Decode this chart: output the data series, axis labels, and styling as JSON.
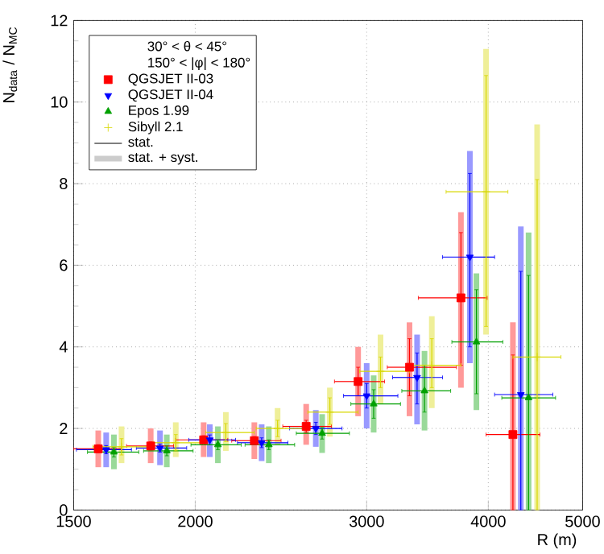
{
  "chart_data": {
    "type": "scatter",
    "xlabel": "R (m)",
    "ylabel": "N$_{data}$ / N$_{MC}$",
    "legend_title": "30° < θ < 45°",
    "annotations": [
      "150° < |φ| < 180°",
      "stat.",
      "stat. + syst."
    ],
    "log": "x",
    "xlim": [
      1500,
      5000
    ],
    "xticks": [
      1500,
      2000,
      3000,
      4000,
      5000
    ],
    "ylim": [
      0,
      12
    ],
    "yticks": [
      0,
      2,
      4,
      6,
      8,
      10,
      12
    ],
    "grid": true,
    "legend": "top left",
    "series": [
      {
        "type": "bar",
        "color": "#ff9999",
        "x": [
          1590,
          1800,
          2040,
          2300,
          2600,
          2940,
          3320,
          3750,
          4240
        ],
        "base": [
          1.05,
          1.15,
          1.3,
          1.25,
          1.6,
          2.3,
          2.3,
          3.0,
          0
        ],
        "values": [
          0.9,
          0.85,
          0.85,
          0.9,
          1.0,
          1.7,
          2.3,
          4.3,
          4.6
        ]
      },
      {
        "type": "bar",
        "color": "#9999ff",
        "x": [
          1620,
          1840,
          2070,
          2340,
          2660,
          3000,
          3380,
          3830,
          4320
        ],
        "base": [
          1.05,
          1.1,
          1.3,
          1.2,
          1.55,
          2.0,
          2.1,
          3.6,
          0
        ],
        "values": [
          0.85,
          0.85,
          0.8,
          0.9,
          0.9,
          1.6,
          2.2,
          5.2,
          6.95
        ]
      },
      {
        "type": "bar",
        "color": "#99d999",
        "x": [
          1650,
          1870,
          2110,
          2380,
          2700,
          3050,
          3440,
          3890,
          4400
        ],
        "base": [
          1.0,
          1.05,
          1.15,
          1.15,
          1.4,
          1.9,
          1.95,
          2.45,
          0
        ],
        "values": [
          0.85,
          0.8,
          0.9,
          0.9,
          0.95,
          1.4,
          1.95,
          3.35,
          6.8
        ]
      },
      {
        "type": "bar",
        "color": "#efef99",
        "x": [
          1680,
          1910,
          2150,
          2430,
          2750,
          3100,
          3500,
          3980,
          4490
        ],
        "base": [
          1.15,
          1.3,
          1.45,
          1.6,
          1.8,
          2.6,
          2.5,
          4.3,
          0
        ],
        "values": [
          0.9,
          0.85,
          0.95,
          0.9,
          1.2,
          1.7,
          2.25,
          7.0,
          9.45
        ]
      },
      {
        "name": "QGSJET II-03",
        "color": "#ff0000",
        "marker": "square",
        "x": [
          1590,
          1800,
          2040,
          2300,
          2600,
          2940,
          3320,
          3750,
          4240
        ],
        "values": [
          1.5,
          1.57,
          1.72,
          1.7,
          2.05,
          3.15,
          3.5,
          5.2,
          1.85
        ],
        "errors": [
          [
            1.4,
            1.6
          ],
          [
            1.47,
            1.67
          ],
          [
            1.62,
            1.82
          ],
          [
            1.6,
            1.8
          ],
          [
            1.9,
            2.2
          ],
          [
            2.8,
            3.5
          ],
          [
            2.8,
            4.2
          ],
          [
            3.55,
            6.8
          ],
          [
            0,
            3.8
          ]
        ],
        "xerrors": [
          [
            1500,
            1680
          ],
          [
            1700,
            1900
          ],
          [
            1910,
            2160
          ],
          [
            2180,
            2450
          ],
          [
            2460,
            2760
          ],
          [
            2780,
            3130
          ],
          [
            3150,
            3710
          ],
          [
            3390,
            3990
          ],
          [
            3980,
            4520
          ]
        ]
      },
      {
        "name": "QGSJET II-04",
        "color": "#0000ff",
        "marker": "triangle-down",
        "x": [
          1620,
          1840,
          2070,
          2340,
          2660,
          3000,
          3380,
          3830,
          4320
        ],
        "values": [
          1.48,
          1.52,
          1.72,
          1.65,
          2.0,
          2.8,
          3.25,
          6.2,
          2.83
        ],
        "errors": [
          [
            1.38,
            1.58
          ],
          [
            1.42,
            1.62
          ],
          [
            1.6,
            1.84
          ],
          [
            1.53,
            1.77
          ],
          [
            1.85,
            2.15
          ],
          [
            2.5,
            3.1
          ],
          [
            2.6,
            3.85
          ],
          [
            4.0,
            8.25
          ],
          [
            0,
            5.85
          ]
        ],
        "xerrors": [
          [
            1510,
            1720
          ],
          [
            1740,
            1960
          ],
          [
            1970,
            2200
          ],
          [
            2210,
            2490
          ],
          [
            2500,
            2830
          ],
          [
            2840,
            3230
          ],
          [
            3190,
            3590
          ],
          [
            3590,
            4060
          ],
          [
            4060,
            4660
          ]
        ]
      },
      {
        "name": "Epos 1.99",
        "color": "#00a000",
        "marker": "triangle",
        "x": [
          1650,
          1870,
          2110,
          2380,
          2700,
          3050,
          3440,
          3890,
          4400
        ],
        "values": [
          1.42,
          1.45,
          1.6,
          1.6,
          1.88,
          2.6,
          2.92,
          4.12,
          2.75
        ],
        "errors": [
          [
            1.3,
            1.54
          ],
          [
            1.33,
            1.57
          ],
          [
            1.48,
            1.72
          ],
          [
            1.48,
            1.72
          ],
          [
            1.74,
            2.02
          ],
          [
            2.25,
            2.95
          ],
          [
            2.4,
            3.55
          ],
          [
            2.85,
            5.4
          ],
          [
            0,
            5.75
          ]
        ],
        "xerrors": [
          [
            1550,
            1750
          ],
          [
            1770,
            1990
          ],
          [
            1980,
            2230
          ],
          [
            2250,
            2530
          ],
          [
            2540,
            2880
          ],
          [
            2890,
            3250
          ],
          [
            3260,
            3660
          ],
          [
            3670,
            4140
          ],
          [
            4130,
            4690
          ]
        ]
      },
      {
        "name": "Sibyll 2.1",
        "color": "#d8d800",
        "marker": "cross",
        "x": [
          1680,
          1910,
          2150,
          2430,
          2750,
          3100,
          3500,
          3980,
          4490
        ],
        "values": [
          1.55,
          1.65,
          1.9,
          2.0,
          2.4,
          3.4,
          3.55,
          7.8,
          3.75
        ],
        "errors": [
          [
            1.35,
            1.75
          ],
          [
            1.45,
            1.85
          ],
          [
            1.68,
            2.12
          ],
          [
            1.8,
            2.2
          ],
          [
            2.1,
            2.75
          ],
          [
            3.0,
            3.75
          ],
          [
            3.0,
            4.2
          ],
          [
            4.5,
            10.65
          ],
          [
            0,
            8.1
          ]
        ],
        "xerrors": [
          [
            1570,
            1800
          ],
          [
            1810,
            2040
          ],
          [
            2050,
            2300
          ],
          [
            2310,
            2600
          ],
          [
            2610,
            2940
          ],
          [
            2950,
            3320
          ],
          [
            3330,
            3750
          ],
          [
            3620,
            4190
          ],
          [
            4240,
            4750
          ]
        ]
      }
    ]
  }
}
